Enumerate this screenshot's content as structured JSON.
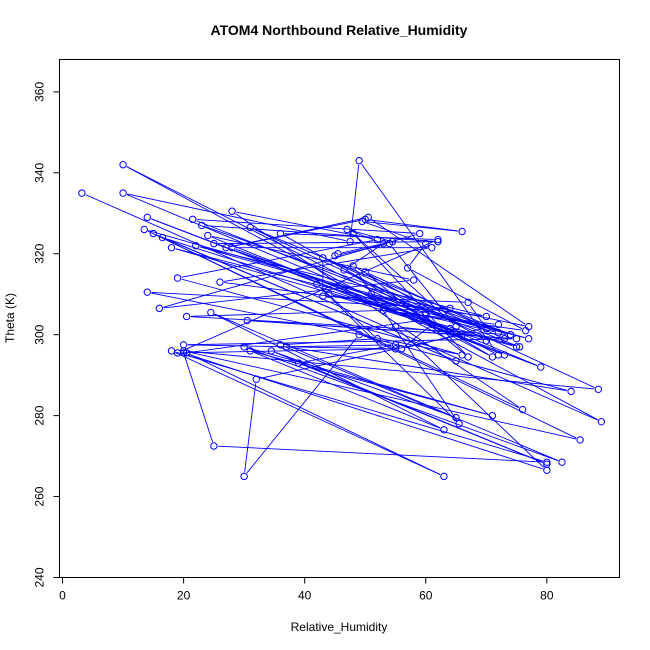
{
  "chart_data": {
    "type": "line",
    "title": "ATOM4 Northbound Relative_Humidity",
    "xlabel": "Relative_Humidity",
    "ylabel": "Theta (K)",
    "xlim": [
      -0.5,
      92
    ],
    "ylim": [
      240,
      368
    ],
    "xticks": [
      0,
      20,
      40,
      60,
      80
    ],
    "yticks": [
      240,
      260,
      280,
      300,
      320,
      340,
      360
    ],
    "grid": false,
    "series_color": "#0000ff",
    "markers": "open-circle",
    "series": [
      {
        "points": [
          [
            3.2,
            335
          ],
          [
            89,
            278.5
          ],
          [
            10,
            342
          ],
          [
            72,
            295
          ],
          [
            49,
            343
          ],
          [
            47.5,
            323
          ],
          [
            10,
            335
          ],
          [
            79,
            292
          ],
          [
            14,
            329
          ],
          [
            73,
            295
          ],
          [
            24,
            324.5
          ],
          [
            58,
            313.5
          ],
          [
            16,
            306.5
          ],
          [
            59,
            325
          ],
          [
            21.5,
            328.5
          ],
          [
            75.5,
            297
          ],
          [
            18,
            321.5
          ],
          [
            77,
            299
          ],
          [
            13.5,
            326
          ],
          [
            76,
            281.5
          ],
          [
            28,
            330.5
          ],
          [
            52,
            323.5
          ],
          [
            19,
            314
          ],
          [
            66,
            295
          ],
          [
            14,
            310.5
          ],
          [
            64,
            306.5
          ],
          [
            20.5,
            304.5
          ],
          [
            74,
            300
          ],
          [
            31,
            326.5
          ],
          [
            88.5,
            286.5
          ],
          [
            20,
            296
          ],
          [
            85.5,
            274
          ],
          [
            15,
            325
          ],
          [
            65,
            293.5
          ],
          [
            16.5,
            324
          ],
          [
            64,
            301.5
          ],
          [
            28,
            321.5
          ],
          [
            61,
            321.5
          ],
          [
            26,
            313
          ],
          [
            70,
            304.5
          ],
          [
            22,
            322
          ],
          [
            74,
            300
          ],
          [
            23,
            327
          ],
          [
            62,
            323
          ],
          [
            25,
            322.5
          ],
          [
            60,
            305
          ],
          [
            36,
            325
          ],
          [
            62,
            323.5
          ],
          [
            19,
            295.5
          ],
          [
            55,
            296.5
          ],
          [
            20,
            297.5
          ],
          [
            75,
            299
          ],
          [
            30.5,
            303.5
          ],
          [
            66,
            300
          ],
          [
            32,
            289
          ],
          [
            30,
            265
          ],
          [
            49,
            300
          ],
          [
            84,
            286
          ],
          [
            37,
            297
          ],
          [
            55,
            297.5
          ],
          [
            39,
            293
          ],
          [
            80,
            268
          ],
          [
            34.5,
            296
          ],
          [
            65,
            279.5
          ],
          [
            24.5,
            305.5
          ],
          [
            63,
            276.5
          ],
          [
            31,
            296
          ],
          [
            71,
            280
          ],
          [
            30,
            297
          ],
          [
            82.5,
            268.5
          ],
          [
            36,
            297.5
          ],
          [
            52,
            299
          ],
          [
            42,
            312.5
          ],
          [
            65.5,
            278
          ],
          [
            48,
            317
          ],
          [
            70,
            298.5
          ],
          [
            44,
            310
          ],
          [
            72,
            300.5
          ],
          [
            50,
            315.5
          ],
          [
            67,
            294.5
          ],
          [
            48,
            325
          ],
          [
            65,
            302
          ],
          [
            54,
            322.5
          ],
          [
            45,
            319.5
          ],
          [
            45.5,
            320
          ],
          [
            54.5,
            323
          ],
          [
            47,
            326
          ],
          [
            53,
            322.5
          ],
          [
            46.5,
            316
          ],
          [
            71,
            294.5
          ],
          [
            51,
            310
          ],
          [
            77,
            302
          ],
          [
            50.5,
            329
          ],
          [
            27,
            321.5
          ],
          [
            50,
            328.5
          ],
          [
            66,
            325.5
          ],
          [
            49.5,
            328
          ],
          [
            60,
            322.5
          ],
          [
            57,
            316.5
          ],
          [
            76.5,
            301
          ],
          [
            53,
            306
          ],
          [
            72,
            302.5
          ],
          [
            56,
            296.5
          ],
          [
            61,
            302.5
          ],
          [
            60,
            305.5
          ],
          [
            70,
            301.5
          ],
          [
            67,
            308
          ],
          [
            43,
            309.5
          ],
          [
            43,
            319
          ],
          [
            73,
            299
          ],
          [
            55,
            302
          ],
          [
            80,
            266.5
          ],
          [
            20,
            295.5
          ],
          [
            25,
            272.5
          ],
          [
            80,
            268.5
          ],
          [
            18,
            296
          ],
          [
            63,
            265
          ],
          [
            20.5,
            295.5
          ],
          [
            59,
            303.5
          ],
          [
            75,
            297
          ]
        ]
      }
    ]
  }
}
